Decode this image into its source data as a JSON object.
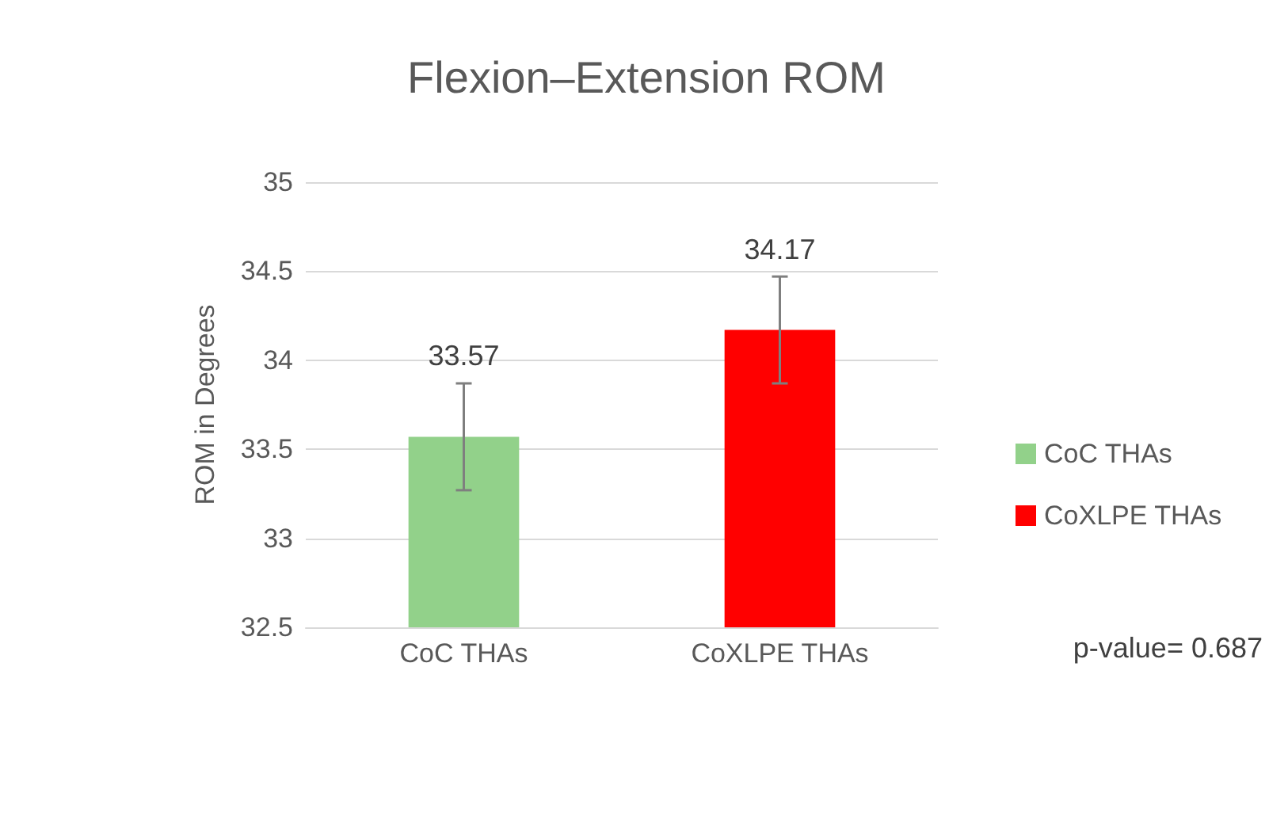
{
  "chart_data": {
    "type": "bar",
    "title": "Flexion–Extension ROM",
    "ylabel": "ROM in Degrees",
    "categories": [
      "CoC THAs",
      "CoXLPE THAs"
    ],
    "series": [
      {
        "name": "CoC THAs",
        "color": "#92d18a",
        "values": [
          33.57,
          null
        ],
        "errors": [
          0.3,
          null
        ]
      },
      {
        "name": "CoXLPE THAs",
        "color": "#ff0000",
        "values": [
          null,
          34.17
        ],
        "errors": [
          null,
          0.3
        ]
      }
    ],
    "ylim": [
      32.5,
      35
    ],
    "yticks": [
      32.5,
      33,
      33.5,
      34,
      34.5,
      35
    ],
    "grid": "y",
    "legend": "right",
    "data_labels": true,
    "annotations": [
      "p-value= 0.687"
    ]
  }
}
